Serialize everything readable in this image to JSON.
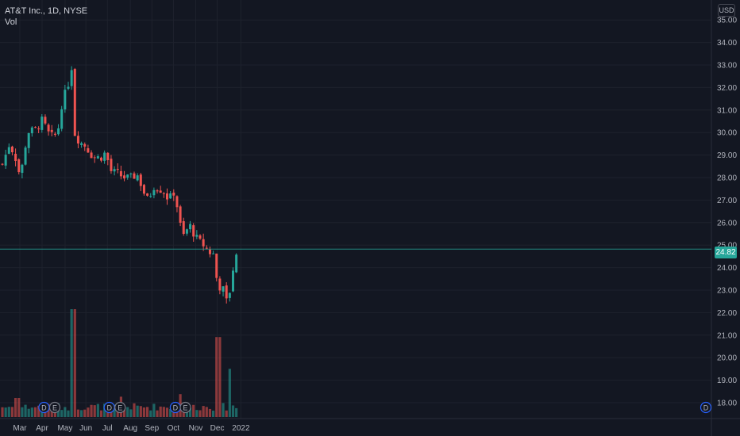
{
  "header": {
    "symbol_line": "AT&T Inc., 1D, NYSE",
    "volume_label": "Vol",
    "currency": "USD"
  },
  "last_price": "24.82",
  "colors": {
    "background": "#131722",
    "grid": "#1e222d",
    "up": "#26a69a",
    "down": "#ef5350",
    "text": "#d1d4dc",
    "axis_text": "#b2b5be",
    "last_price_line": "#26a69a"
  },
  "chart_data": {
    "type": "candlestick",
    "title": "AT&T Inc., 1D, NYSE",
    "currency": "USD",
    "ylim": [
      17.5,
      35.6
    ],
    "y_ticks": [
      "18.00",
      "19.00",
      "20.00",
      "21.00",
      "22.00",
      "23.00",
      "24.00",
      "25.00",
      "26.00",
      "27.00",
      "28.00",
      "29.00",
      "30.00",
      "31.00",
      "32.00",
      "33.00",
      "34.00",
      "35.00"
    ],
    "x_labels": [
      "Mar",
      "Apr",
      "May",
      "Jun",
      "Jul",
      "Aug",
      "Sep",
      "Oct",
      "Nov",
      "Dec",
      "2022"
    ],
    "grid": true,
    "volume_series": "Vol",
    "events": [
      {
        "kind": "dividend",
        "label": "D",
        "month": "Apr"
      },
      {
        "kind": "earnings",
        "label": "E",
        "month": "Apr"
      },
      {
        "kind": "dividend",
        "label": "D",
        "month": "Jul"
      },
      {
        "kind": "earnings",
        "label": "E",
        "month": "Jul"
      },
      {
        "kind": "dividend",
        "label": "D",
        "month": "Oct"
      },
      {
        "kind": "earnings",
        "label": "E",
        "month": "Oct"
      },
      {
        "kind": "dividend",
        "label": "D",
        "month": "2022"
      }
    ],
    "close_path": [
      [
        "2021-02-08",
        28.6
      ],
      [
        "2021-02-18",
        29.5
      ],
      [
        "2021-02-26",
        28.9
      ],
      [
        "2021-03-05",
        28.0
      ],
      [
        "2021-03-15",
        30.0
      ],
      [
        "2021-03-29",
        30.2
      ],
      [
        "2021-04-05",
        30.6
      ],
      [
        "2021-04-12",
        30.0
      ],
      [
        "2021-04-20",
        29.8
      ],
      [
        "2021-04-26",
        30.0
      ],
      [
        "2021-05-03",
        31.5
      ],
      [
        "2021-05-10",
        32.0
      ],
      [
        "2021-05-14",
        32.8
      ],
      [
        "2021-05-17",
        33.0
      ],
      [
        "2021-05-18",
        31.4
      ],
      [
        "2021-05-19",
        30.0
      ],
      [
        "2021-05-26",
        29.6
      ],
      [
        "2021-06-04",
        29.4
      ],
      [
        "2021-06-14",
        28.9
      ],
      [
        "2021-06-28",
        28.9
      ],
      [
        "2021-07-02",
        29.2
      ],
      [
        "2021-07-08",
        28.3
      ],
      [
        "2021-07-19",
        28.2
      ],
      [
        "2021-07-26",
        28.0
      ],
      [
        "2021-08-05",
        28.0
      ],
      [
        "2021-08-16",
        28.1
      ],
      [
        "2021-08-23",
        27.4
      ],
      [
        "2021-08-30",
        27.0
      ],
      [
        "2021-09-07",
        27.6
      ],
      [
        "2021-09-20",
        27.4
      ],
      [
        "2021-09-28",
        27.0
      ],
      [
        "2021-10-04",
        27.4
      ],
      [
        "2021-10-08",
        27.0
      ],
      [
        "2021-10-13",
        26.0
      ],
      [
        "2021-10-18",
        25.4
      ],
      [
        "2021-10-27",
        25.9
      ],
      [
        "2021-11-03",
        25.4
      ],
      [
        "2021-11-15",
        25.0
      ],
      [
        "2021-11-26",
        24.6
      ],
      [
        "2021-12-01",
        24.6
      ],
      [
        "2021-12-06",
        22.4
      ],
      [
        "2021-12-09",
        23.5
      ],
      [
        "2021-12-16",
        22.6
      ],
      [
        "2021-12-20",
        22.3
      ],
      [
        "2021-12-23",
        23.4
      ],
      [
        "2021-12-28",
        24.2
      ],
      [
        "2022-01-03",
        24.82
      ]
    ],
    "volume_spikes_relative": [
      [
        "2021-03-01",
        0.15
      ],
      [
        "2021-04-13",
        0.09
      ],
      [
        "2021-05-18",
        0.85
      ],
      [
        "2021-05-19",
        0.48
      ],
      [
        "2021-07-22",
        0.16
      ],
      [
        "2021-09-28",
        0.06
      ],
      [
        "2021-10-14",
        0.18
      ],
      [
        "2021-12-06",
        0.63
      ],
      [
        "2021-12-21",
        0.38
      ]
    ]
  }
}
